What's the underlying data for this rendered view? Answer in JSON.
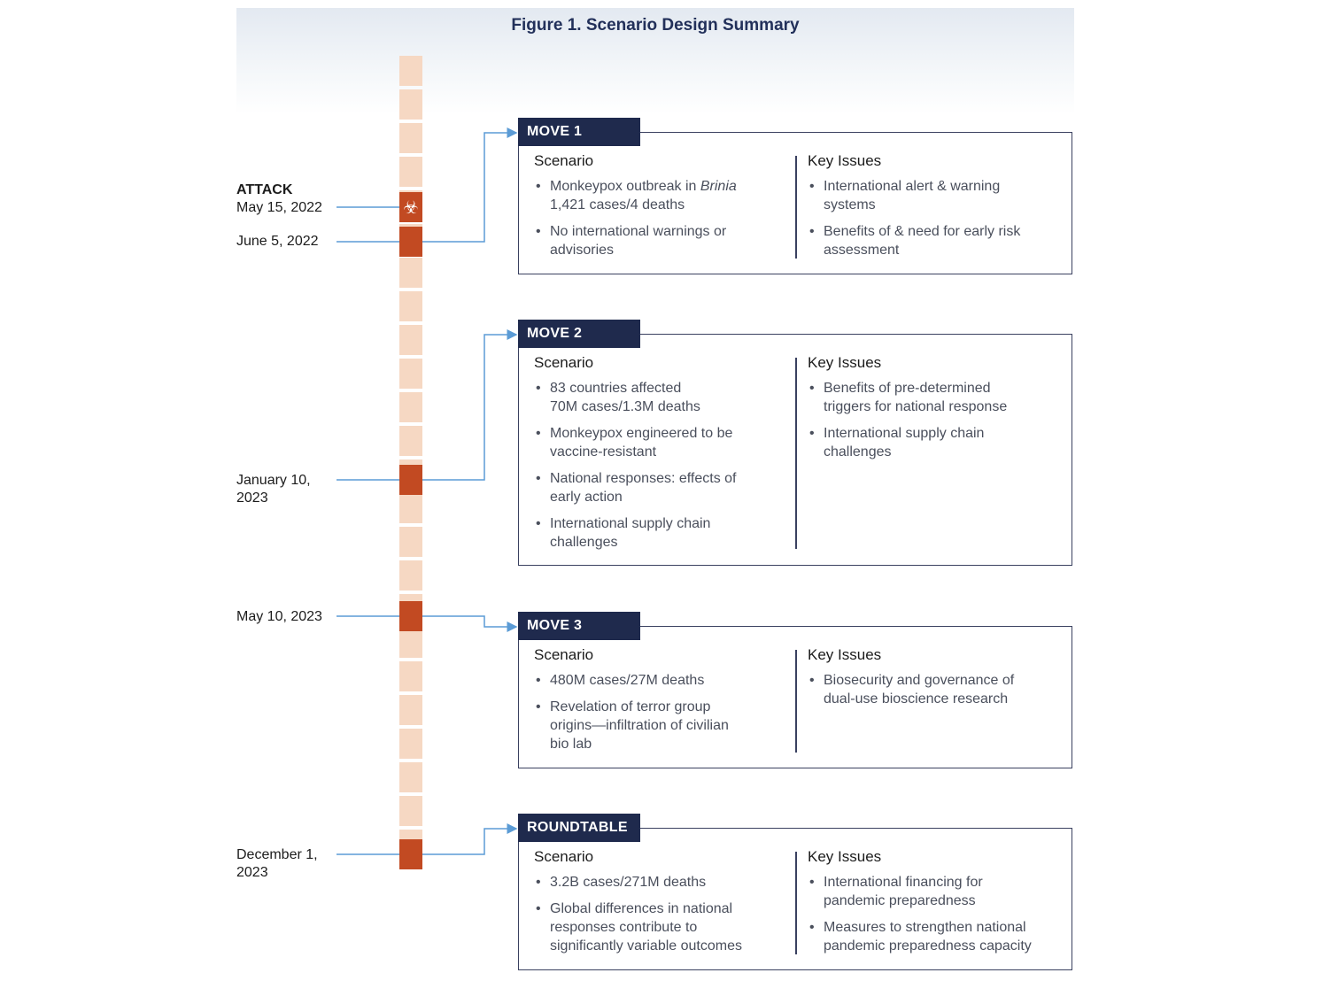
{
  "figure": {
    "title": "Figure 1. Scenario Design Summary"
  },
  "timeline": {
    "events": [
      {
        "label": "ATTACK",
        "date": "May 15, 2022"
      },
      {
        "date": "June 5, 2022"
      },
      {
        "date_lines": [
          "January 10,",
          "2023"
        ]
      },
      {
        "date": "May 10, 2023"
      },
      {
        "date_lines": [
          "December 1,",
          "2023"
        ]
      }
    ],
    "attack_icon": "biohazard-icon"
  },
  "moves": [
    {
      "tab": "MOVE 1",
      "scenario_heading": "Scenario",
      "issues_heading": "Key Issues",
      "scenario": [
        [
          "Monkeypox outbreak in Brinia",
          "1,421 cases/4 deaths"
        ],
        [
          "No international warnings or",
          "advisories"
        ]
      ],
      "issues": [
        [
          "International alert & warning",
          "systems"
        ],
        [
          "Benefits of & need for early risk",
          "assessment"
        ]
      ]
    },
    {
      "tab": "MOVE 2",
      "scenario_heading": "Scenario",
      "issues_heading": "Key Issues",
      "scenario": [
        [
          "83 countries affected",
          "70M cases/1.3M deaths"
        ],
        [
          "Monkeypox engineered to be",
          "vaccine-resistant"
        ],
        [
          "National responses: effects of",
          "early action"
        ],
        [
          "International supply chain",
          "challenges"
        ]
      ],
      "issues": [
        [
          "Benefits of pre-determined",
          "triggers for national response"
        ],
        [
          "International supply chain",
          "challenges"
        ]
      ]
    },
    {
      "tab": "MOVE 3",
      "scenario_heading": "Scenario",
      "issues_heading": "Key Issues",
      "scenario": [
        [
          "480M cases/27M deaths"
        ],
        [
          "Revelation of terror group",
          "origins—infiltration of civilian",
          "bio lab"
        ]
      ],
      "issues": [
        [
          "Biosecurity and governance of",
          "dual-use bioscience research"
        ]
      ]
    },
    {
      "tab": "ROUNDTABLE",
      "scenario_heading": "Scenario",
      "issues_heading": "Key Issues",
      "scenario": [
        [
          "3.2B cases/271M deaths"
        ],
        [
          "Global differences in national",
          "responses contribute to",
          "significantly variable outcomes"
        ]
      ],
      "issues": [
        [
          "International financing for",
          "pandemic preparedness"
        ],
        [
          "Measures to strengthen national",
          "pandemic preparedness capacity"
        ]
      ]
    }
  ],
  "colors": {
    "navy": "#1f2a4d",
    "marker": "#c24a22",
    "timeline_light": "#f6d8c3",
    "connector": "#5b9bd5"
  }
}
